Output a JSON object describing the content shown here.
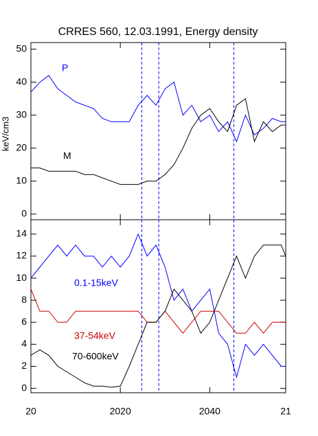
{
  "chart_data": [
    {
      "type": "line",
      "title": "CRRES 560, 12.03.1991,  Energy density",
      "ylabel": "keV/cm3",
      "xlim": [
        0,
        57
      ],
      "ylim": [
        -1.7,
        52
      ],
      "yticks": [
        0,
        10,
        20,
        30,
        40,
        50
      ],
      "vlines": [
        24.8,
        28.6,
        45.4
      ],
      "vline_color": "#0000ff",
      "x": [
        0,
        2,
        4,
        6,
        8,
        10,
        12,
        14,
        16,
        18,
        20,
        22,
        24,
        26,
        28,
        30,
        32,
        34,
        36,
        38,
        40,
        42,
        44,
        46,
        48,
        50,
        52,
        54,
        56,
        57
      ],
      "series": [
        {
          "name": "P",
          "color": "#0000ff",
          "values": [
            37,
            40,
            42,
            38,
            36,
            34,
            33,
            32,
            29,
            28,
            28,
            28,
            33,
            36,
            33,
            38,
            40,
            30,
            33,
            28,
            30,
            25,
            28,
            22,
            30,
            24,
            26,
            29,
            28,
            28
          ]
        },
        {
          "name": "M",
          "color": "#000000",
          "values": [
            14,
            14,
            13,
            13,
            13,
            13,
            12,
            12,
            11,
            10,
            9,
            9,
            9,
            10,
            10,
            12,
            15,
            20,
            26,
            30,
            32,
            28,
            25,
            33,
            35,
            22,
            28,
            25,
            27,
            27
          ]
        }
      ]
    },
    {
      "type": "line",
      "xlim": [
        0,
        57
      ],
      "xticks": [
        {
          "value": 0,
          "label": "20"
        },
        {
          "value": 20,
          "label": "2020"
        },
        {
          "value": 40,
          "label": "2040"
        },
        {
          "value": 57,
          "label": "21"
        }
      ],
      "ylim": [
        -0.4,
        15.3
      ],
      "yticks": [
        0,
        2,
        4,
        6,
        8,
        10,
        12,
        14
      ],
      "vlines": [
        24.8,
        28.6,
        45.4
      ],
      "vline_color": "#0000ff",
      "x": [
        0,
        2,
        4,
        6,
        8,
        10,
        12,
        14,
        16,
        18,
        20,
        22,
        24,
        26,
        28,
        30,
        32,
        34,
        36,
        38,
        40,
        42,
        44,
        46,
        48,
        50,
        52,
        54,
        56,
        57
      ],
      "series": [
        {
          "name": "0.1-15keV",
          "color": "#0000ff",
          "values": [
            10,
            11,
            12,
            13,
            12,
            13,
            12,
            12,
            11,
            12,
            11,
            12,
            14,
            12,
            13,
            11,
            8,
            9,
            7,
            8,
            9,
            5,
            4,
            1,
            4,
            3,
            4,
            3,
            2,
            2
          ]
        },
        {
          "name": "37-54keV",
          "color": "#cc0000",
          "values": [
            9,
            7,
            7,
            6,
            6,
            7,
            7,
            7,
            7,
            7,
            7,
            7,
            7,
            6,
            6,
            7,
            6,
            5,
            6,
            7,
            7,
            7,
            6,
            5,
            5,
            6,
            5,
            6,
            6,
            6
          ]
        },
        {
          "name": "70-600keV",
          "color": "#000000",
          "values": [
            3,
            3.5,
            3,
            2,
            1.5,
            1,
            0.5,
            0.2,
            0.2,
            0.1,
            0.2,
            2,
            4,
            6,
            6,
            7,
            9,
            8,
            7,
            5,
            6,
            8,
            10,
            12,
            10,
            12,
            13,
            13,
            13,
            12
          ]
        }
      ]
    }
  ]
}
